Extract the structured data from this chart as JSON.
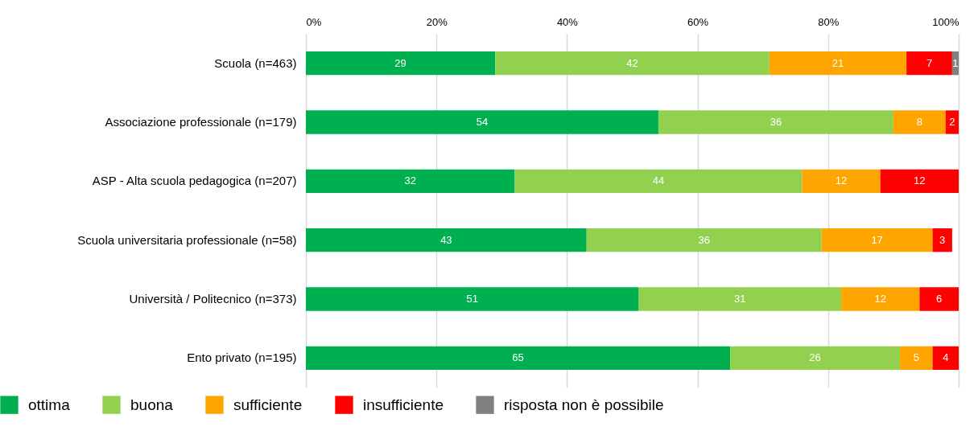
{
  "chart_data": {
    "type": "bar",
    "orientation": "horizontal",
    "stacked": true,
    "data_labels": true,
    "grid": "x",
    "legend": "bottom left",
    "categories": [
      "Scuola (n=463)",
      "Associazione professionale (n=179)",
      "ASP - Alta scuola pedagogica (n=207)",
      "Scuola universitaria professionale (n=58)",
      "Università / Politecnico (n=373)",
      "Ento privato (n=195)"
    ],
    "series": [
      {
        "name": "ottima",
        "color": "#00b050",
        "values": [
          29,
          54,
          32,
          43,
          51,
          65
        ]
      },
      {
        "name": "buona",
        "color": "#92d050",
        "values": [
          42,
          36,
          44,
          36,
          31,
          26
        ]
      },
      {
        "name": "sufficiente",
        "color": "#ffa500",
        "values": [
          21,
          8,
          12,
          17,
          12,
          5
        ]
      },
      {
        "name": "insufficiente",
        "color": "#ff0000",
        "values": [
          7,
          2,
          12,
          3,
          6,
          4
        ]
      },
      {
        "name": "risposta non è possibile",
        "color": "#808080",
        "values": [
          1,
          null,
          null,
          null,
          null,
          null
        ]
      }
    ],
    "xlim": [
      0,
      100
    ],
    "xticks": [
      {
        "value": 0,
        "label": "0%"
      },
      {
        "value": 20,
        "label": "20%"
      },
      {
        "value": 40,
        "label": "40%"
      },
      {
        "value": 60,
        "label": "60%"
      },
      {
        "value": 80,
        "label": "80%"
      },
      {
        "value": 100,
        "label": "100%"
      }
    ]
  }
}
